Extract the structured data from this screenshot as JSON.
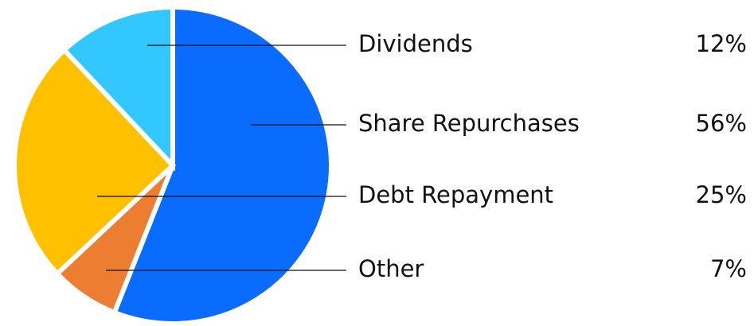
{
  "chart_data": {
    "type": "pie",
    "categories": [
      "Share Repurchases",
      "Other",
      "Debt Repayment",
      "Dividends"
    ],
    "values": [
      56,
      7,
      25,
      12
    ],
    "value_labels": [
      "56%",
      "7%",
      "25%",
      "12%"
    ],
    "colors": [
      "#0a6cff",
      "#ed7d31",
      "#ffc000",
      "#33c7ff"
    ]
  }
}
